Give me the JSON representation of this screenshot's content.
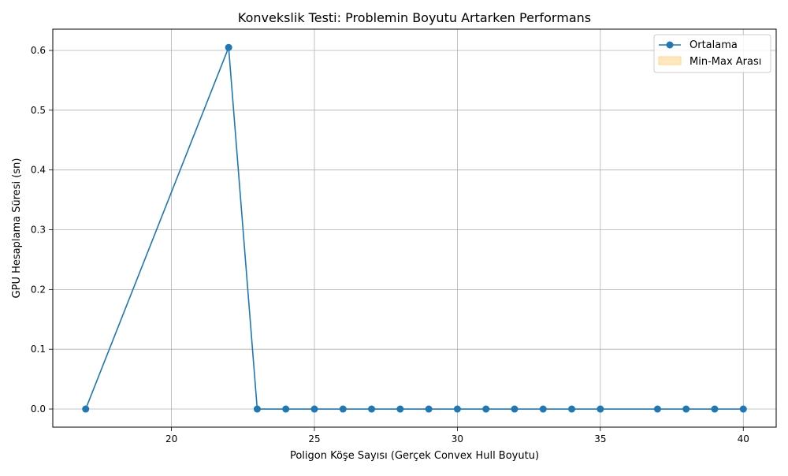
{
  "chart_data": {
    "type": "line",
    "title": "Konvekslik Testi: Problemin Boyutu Artarken Performans",
    "xlabel": "Poligon Köşe Sayısı (Gerçek Convex Hull Boyutu)",
    "ylabel": "GPU Hesaplama Süresi (sn)",
    "xlim": [
      15.85,
      41.15
    ],
    "ylim": [
      -0.0303,
      0.6356
    ],
    "xticks": [
      20,
      25,
      30,
      35,
      40
    ],
    "xtick_labels": [
      "20",
      "25",
      "30",
      "35",
      "40"
    ],
    "yticks": [
      0.0,
      0.1,
      0.2,
      0.3,
      0.4,
      0.5,
      0.6
    ],
    "ytick_labels": [
      "0.0",
      "0.1",
      "0.2",
      "0.3",
      "0.4",
      "0.5",
      "0.6"
    ],
    "grid": true,
    "legend_position": "top-right",
    "legend": [
      {
        "label": "Ortalama",
        "kind": "line-marker",
        "color": "#1f77b4"
      },
      {
        "label": "Min-Max Arası",
        "kind": "band",
        "color": "#ffe8c0"
      }
    ],
    "series": [
      {
        "name": "Ortalama",
        "color": "#1f77b4",
        "x": [
          17,
          22,
          23,
          24,
          25,
          26,
          27,
          28,
          29,
          30,
          31,
          32,
          33,
          34,
          35,
          37,
          38,
          39,
          40
        ],
        "y": [
          0.0,
          0.605,
          0.0,
          0.0,
          0.0,
          0.0,
          0.0,
          0.0,
          0.0,
          0.0,
          0.0,
          0.0,
          0.0,
          0.0,
          0.0,
          0.0,
          0.0,
          0.0,
          0.0
        ]
      }
    ]
  }
}
